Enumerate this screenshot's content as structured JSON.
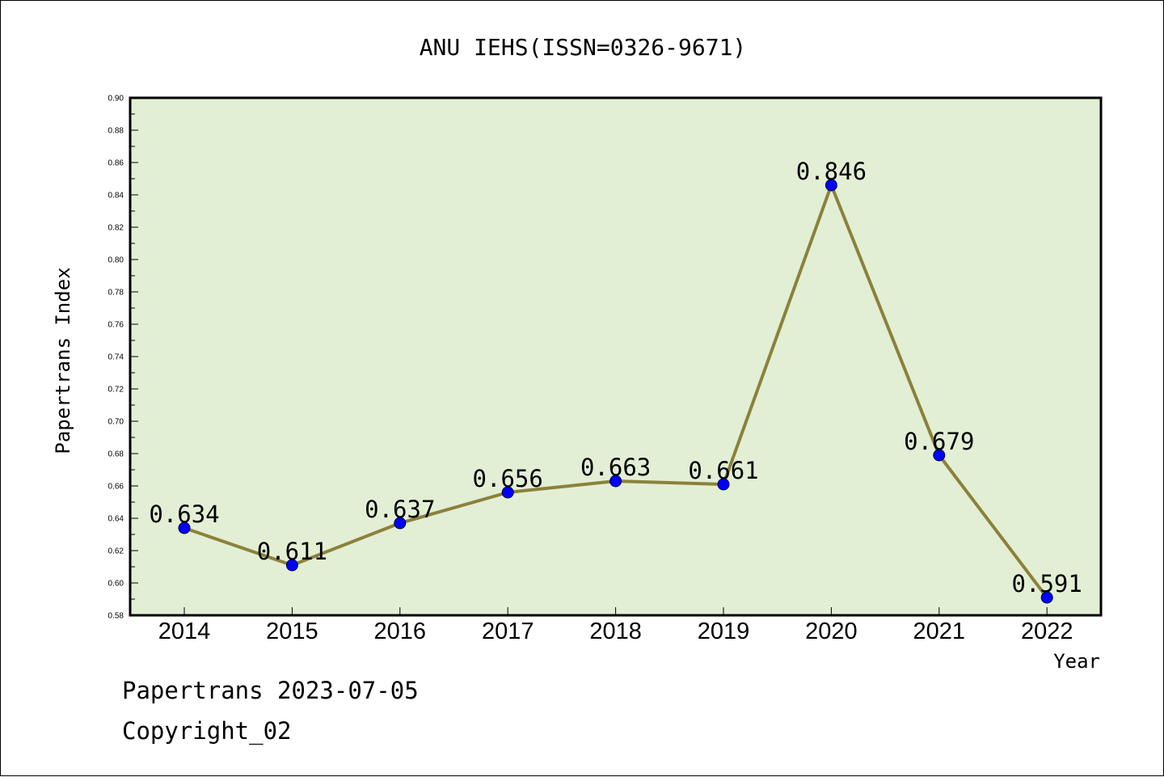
{
  "chart_data": {
    "type": "line",
    "title": "ANU IEHS(ISSN=0326-9671)",
    "xlabel": "Year",
    "ylabel": "Papertrans Index",
    "categories": [
      "2014",
      "2015",
      "2016",
      "2017",
      "2018",
      "2019",
      "2020",
      "2021",
      "2022"
    ],
    "values": [
      0.634,
      0.611,
      0.637,
      0.656,
      0.663,
      0.661,
      0.846,
      0.679,
      0.591
    ],
    "data_labels": [
      "0.634",
      "0.611",
      "0.637",
      "0.656",
      "0.663",
      "0.661",
      "0.846",
      "0.679",
      "0.591"
    ],
    "ylim": [
      0.58,
      0.9
    ],
    "yticks": [
      "0.58",
      "0.60",
      "0.62",
      "0.64",
      "0.66",
      "0.68",
      "0.70",
      "0.72",
      "0.74",
      "0.76",
      "0.78",
      "0.80",
      "0.82",
      "0.84",
      "0.86",
      "0.88",
      "0.90"
    ],
    "grid": false,
    "legend": "none",
    "colors": {
      "plot_background": "#e2efd5",
      "line": "#8b8139",
      "marker": "#0000ff",
      "axis": "#000000"
    }
  },
  "footer": {
    "line1": "Papertrans 2023-07-05",
    "line2": "Copyright_02"
  }
}
